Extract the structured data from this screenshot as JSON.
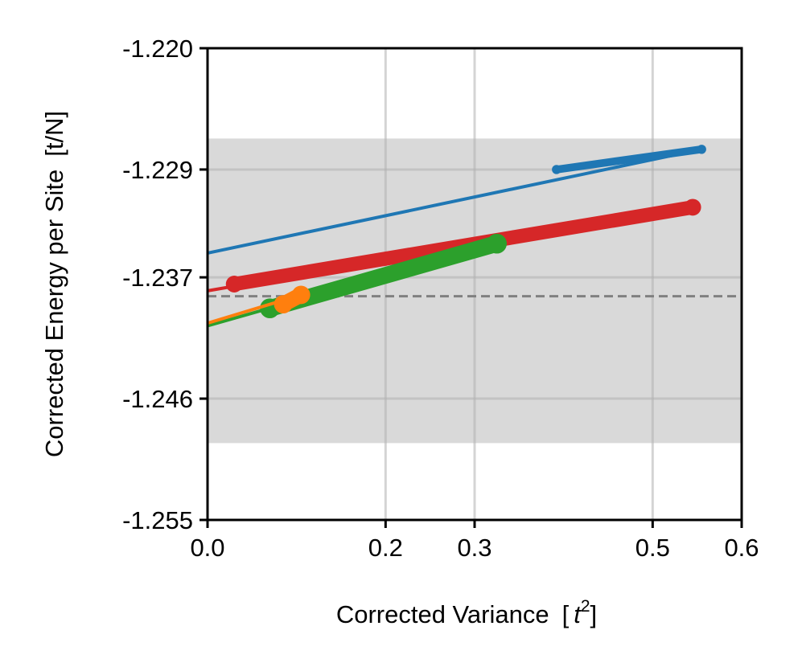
{
  "chart_data": {
    "type": "scatter",
    "title": "",
    "xlabel": "Corrected Variance",
    "xlabel_unit_prefix": "[",
    "xlabel_unit": "t",
    "xlabel_unit_exp": "2",
    "xlabel_unit_suffix": "]",
    "ylabel": "Corrected Energy per Site",
    "ylabel_unit": "[t/N]",
    "xlim": [
      0.0,
      0.6
    ],
    "ylim": [
      -1.255,
      -1.22
    ],
    "xticks": [
      "0.0",
      "0.2",
      "0.3",
      "0.5",
      "0.6"
    ],
    "xtick_values": [
      0.0,
      0.2,
      0.3,
      0.5,
      0.6
    ],
    "yticks": [
      "-1.220",
      "-1.229",
      "-1.237",
      "-1.246",
      "-1.255"
    ],
    "ytick_values": [
      -1.22,
      -1.229,
      -1.237,
      -1.246,
      -1.255
    ],
    "grid": true,
    "legend": "none",
    "reference_band": {
      "y0": -1.2493,
      "y1": -1.2267,
      "color": "#d9d9d9"
    },
    "reference_line": {
      "y": -1.2384,
      "color": "#808080",
      "style": "dashed"
    },
    "series": [
      {
        "color": "#1f77b4",
        "fit": {
          "x": [
            0.0,
            0.555
          ],
          "y": [
            -1.2352,
            -1.2275
          ]
        },
        "points": {
          "x0": 0.392,
          "x1": 0.555,
          "y0": -1.229,
          "y1": -1.2275
        },
        "weight": 6
      },
      {
        "color": "#d62728",
        "fit": {
          "x": [
            0.0,
            0.545
          ],
          "y": [
            -1.238,
            -1.2318
          ]
        },
        "points": {
          "x0": 0.03,
          "x1": 0.545,
          "y0": -1.2375,
          "y1": -1.2318
        },
        "weight": 11
      },
      {
        "color": "#2ca02c",
        "fit": {
          "x": [
            0.0,
            0.325
          ],
          "y": [
            -1.2406,
            -1.2345
          ]
        },
        "points": {
          "x0": 0.07,
          "x1": 0.325,
          "y0": -1.2393,
          "y1": -1.2345
        },
        "weight": 13
      },
      {
        "color": "#ff7f0e",
        "fit": {
          "x": [
            0.0,
            0.105
          ],
          "y": [
            -1.2404,
            -1.2383
          ]
        },
        "points": {
          "x0": 0.085,
          "x1": 0.105,
          "y0": -1.239,
          "y1": -1.2383
        },
        "weight": 12
      }
    ]
  }
}
